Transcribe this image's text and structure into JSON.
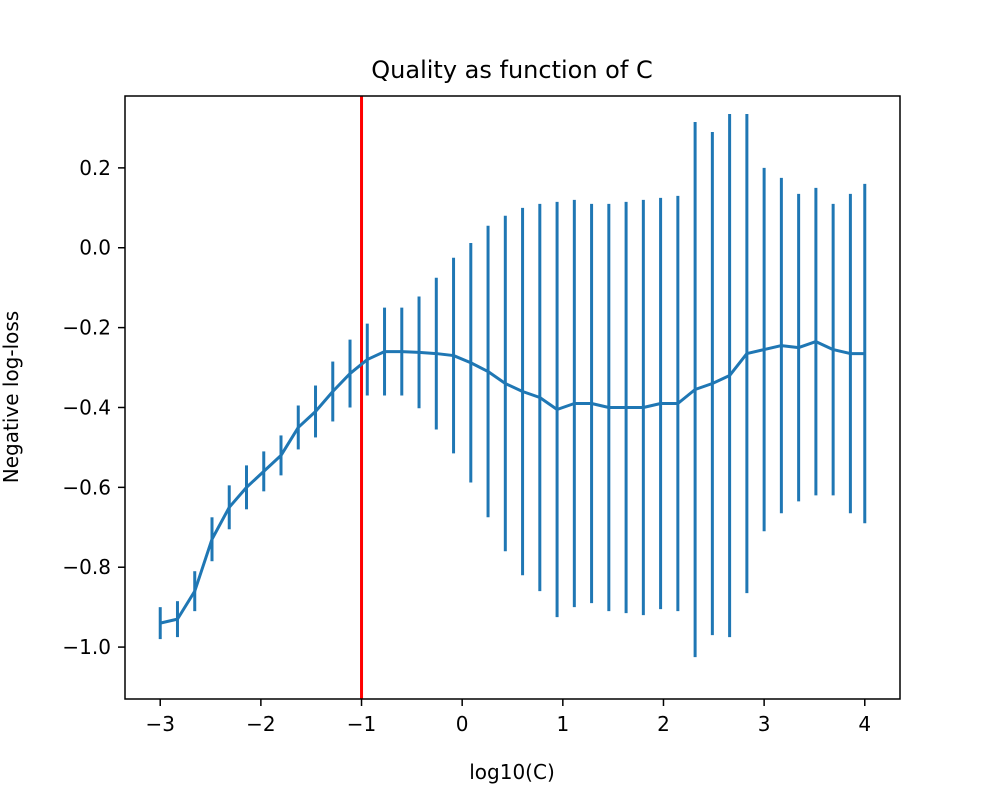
{
  "chart_data": {
    "type": "line",
    "title": "Quality as function of C",
    "xlabel": "log10(C)",
    "ylabel": "Negative log-loss",
    "xlim": [
      -3.35,
      4.35
    ],
    "ylim": [
      -1.13,
      0.38
    ],
    "x_ticks": [
      -3,
      -2,
      -1,
      0,
      1,
      2,
      3,
      4
    ],
    "x_tick_labels": [
      "−3",
      "−2",
      "−1",
      "0",
      "1",
      "2",
      "3",
      "4"
    ],
    "y_ticks": [
      -1.0,
      -0.8,
      -0.6,
      -0.4,
      -0.2,
      0.0,
      0.2
    ],
    "y_tick_labels": [
      "−1.0",
      "−0.8",
      "−0.6",
      "−0.4",
      "−0.2",
      "0.0",
      "0.2"
    ],
    "grid": false,
    "legend": "none",
    "vline": {
      "x": -1,
      "color": "#ff0000"
    },
    "series": [
      {
        "color": "#1f77b4",
        "x": [
          -3.0,
          -2.8286,
          -2.6571,
          -2.4857,
          -2.3143,
          -2.1429,
          -1.9714,
          -1.8,
          -1.6286,
          -1.4571,
          -1.2857,
          -1.1143,
          -0.9429,
          -0.7714,
          -0.6,
          -0.4286,
          -0.2571,
          -0.0857,
          0.0857,
          0.2571,
          0.4286,
          0.6,
          0.7714,
          0.9429,
          1.1143,
          1.2857,
          1.4571,
          1.6286,
          1.8,
          1.9714,
          2.1429,
          2.3143,
          2.4857,
          2.6571,
          2.8286,
          3.0,
          3.1714,
          3.3429,
          3.5143,
          3.6857,
          3.8571,
          4.0
        ],
        "y": [
          -0.94,
          -0.93,
          -0.86,
          -0.73,
          -0.65,
          -0.6,
          -0.56,
          -0.52,
          -0.45,
          -0.41,
          -0.36,
          -0.315,
          -0.28,
          -0.26,
          -0.26,
          -0.262,
          -0.265,
          -0.27,
          -0.288,
          -0.31,
          -0.34,
          -0.36,
          -0.375,
          -0.405,
          -0.39,
          -0.39,
          -0.4,
          -0.4,
          -0.4,
          -0.39,
          -0.39,
          -0.355,
          -0.34,
          -0.32,
          -0.265,
          -0.255,
          -0.245,
          -0.25,
          -0.235,
          -0.255,
          -0.265,
          -0.265
        ],
        "err": [
          0.04,
          0.045,
          0.05,
          0.055,
          0.055,
          0.055,
          0.05,
          0.05,
          0.055,
          0.065,
          0.075,
          0.085,
          0.09,
          0.11,
          0.11,
          0.14,
          0.19,
          0.245,
          0.3,
          0.365,
          0.42,
          0.46,
          0.485,
          0.52,
          0.51,
          0.5,
          0.51,
          0.515,
          0.52,
          0.515,
          0.52,
          0.67,
          0.63,
          0.655,
          0.6,
          0.455,
          0.42,
          0.385,
          0.385,
          0.365,
          0.4,
          0.425
        ]
      }
    ]
  }
}
